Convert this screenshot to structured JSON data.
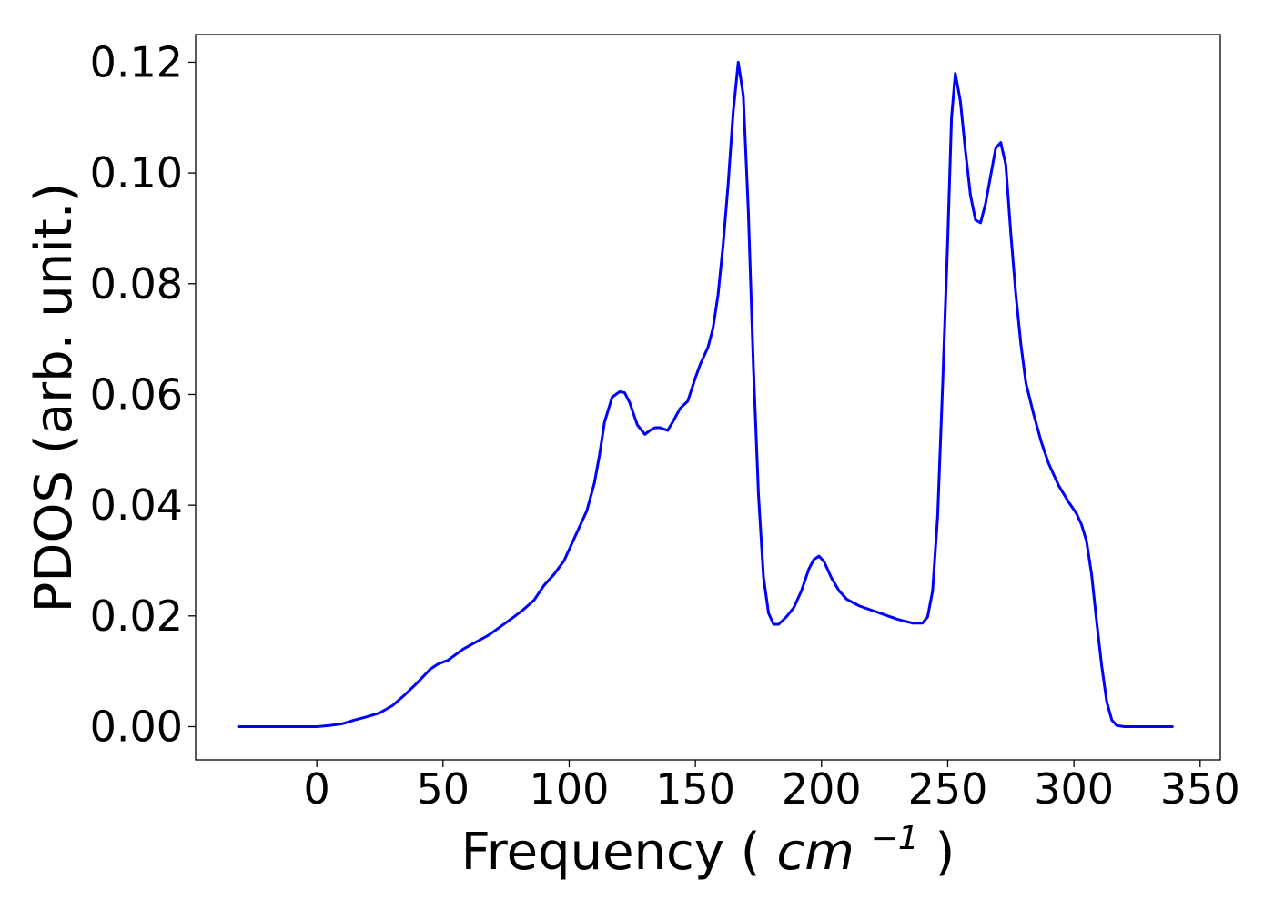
{
  "chart_data": {
    "type": "line",
    "title": "",
    "xlabel": "Frequency",
    "xlabel_unit_base": "cm",
    "xlabel_unit_exponent": "−1",
    "ylabel": "PDOS (arb. unit.)",
    "xlim": [
      -48,
      358
    ],
    "ylim": [
      -0.006,
      0.125
    ],
    "x_ticks": [
      0,
      50,
      100,
      150,
      200,
      250,
      300,
      350
    ],
    "x_tick_labels": [
      "0",
      "50",
      "100",
      "150",
      "200",
      "250",
      "300",
      "350"
    ],
    "y_ticks": [
      0.0,
      0.02,
      0.04,
      0.06,
      0.08,
      0.1,
      0.12
    ],
    "y_tick_labels": [
      "0.00",
      "0.02",
      "0.04",
      "0.06",
      "0.08",
      "0.10",
      "0.12"
    ],
    "grid": false,
    "legend": "none",
    "series": [
      {
        "color": "#0000ff",
        "x": [
          -31,
          -20,
          -10,
          0,
          5,
          10,
          15,
          20,
          25,
          30,
          35,
          40,
          45,
          48,
          52,
          58,
          62,
          68,
          72,
          78,
          82,
          86,
          90,
          94,
          98,
          101,
          104,
          107,
          110,
          112,
          114,
          117,
          120,
          122,
          124,
          127,
          130,
          132,
          134,
          136,
          139,
          141,
          144,
          147,
          150,
          152,
          155,
          157,
          159,
          161,
          163,
          165,
          167,
          169,
          171,
          173,
          175,
          177,
          179,
          181,
          183,
          186,
          189,
          192,
          195,
          197,
          199,
          201,
          204,
          207,
          210,
          215,
          220,
          225,
          230,
          236,
          240,
          242,
          244,
          246,
          248,
          250,
          251.5,
          253,
          255,
          257,
          259,
          261,
          263,
          265,
          267,
          269,
          271,
          273,
          275,
          277,
          279,
          281,
          284,
          287,
          290,
          294,
          298,
          301,
          303,
          305,
          307,
          309,
          311,
          313,
          315,
          317,
          320,
          330,
          339
        ],
        "values": [
          0.0,
          0.0,
          0.0,
          0.0,
          0.0002,
          0.0005,
          0.0012,
          0.0018,
          0.0025,
          0.0038,
          0.0058,
          0.008,
          0.0104,
          0.0113,
          0.012,
          0.014,
          0.015,
          0.0165,
          0.0178,
          0.0198,
          0.0212,
          0.0228,
          0.0255,
          0.0275,
          0.03,
          0.033,
          0.036,
          0.039,
          0.044,
          0.049,
          0.055,
          0.0595,
          0.0605,
          0.0603,
          0.0585,
          0.0545,
          0.0528,
          0.0535,
          0.054,
          0.054,
          0.0535,
          0.055,
          0.0575,
          0.0588,
          0.063,
          0.0655,
          0.0685,
          0.072,
          0.078,
          0.087,
          0.098,
          0.111,
          0.12,
          0.114,
          0.093,
          0.065,
          0.042,
          0.027,
          0.0205,
          0.0185,
          0.0185,
          0.0198,
          0.0215,
          0.0245,
          0.0285,
          0.0302,
          0.0308,
          0.0298,
          0.0268,
          0.0245,
          0.023,
          0.0218,
          0.021,
          0.0202,
          0.0194,
          0.0187,
          0.0187,
          0.0198,
          0.0245,
          0.038,
          0.062,
          0.088,
          0.11,
          0.118,
          0.113,
          0.104,
          0.096,
          0.0915,
          0.091,
          0.0945,
          0.0995,
          0.1045,
          0.1055,
          0.1015,
          0.089,
          0.078,
          0.069,
          0.062,
          0.0565,
          0.0515,
          0.0475,
          0.0435,
          0.0405,
          0.0385,
          0.0365,
          0.0335,
          0.0275,
          0.019,
          0.011,
          0.0045,
          0.0012,
          0.0002,
          0.0,
          0.0,
          0.0
        ]
      }
    ]
  }
}
